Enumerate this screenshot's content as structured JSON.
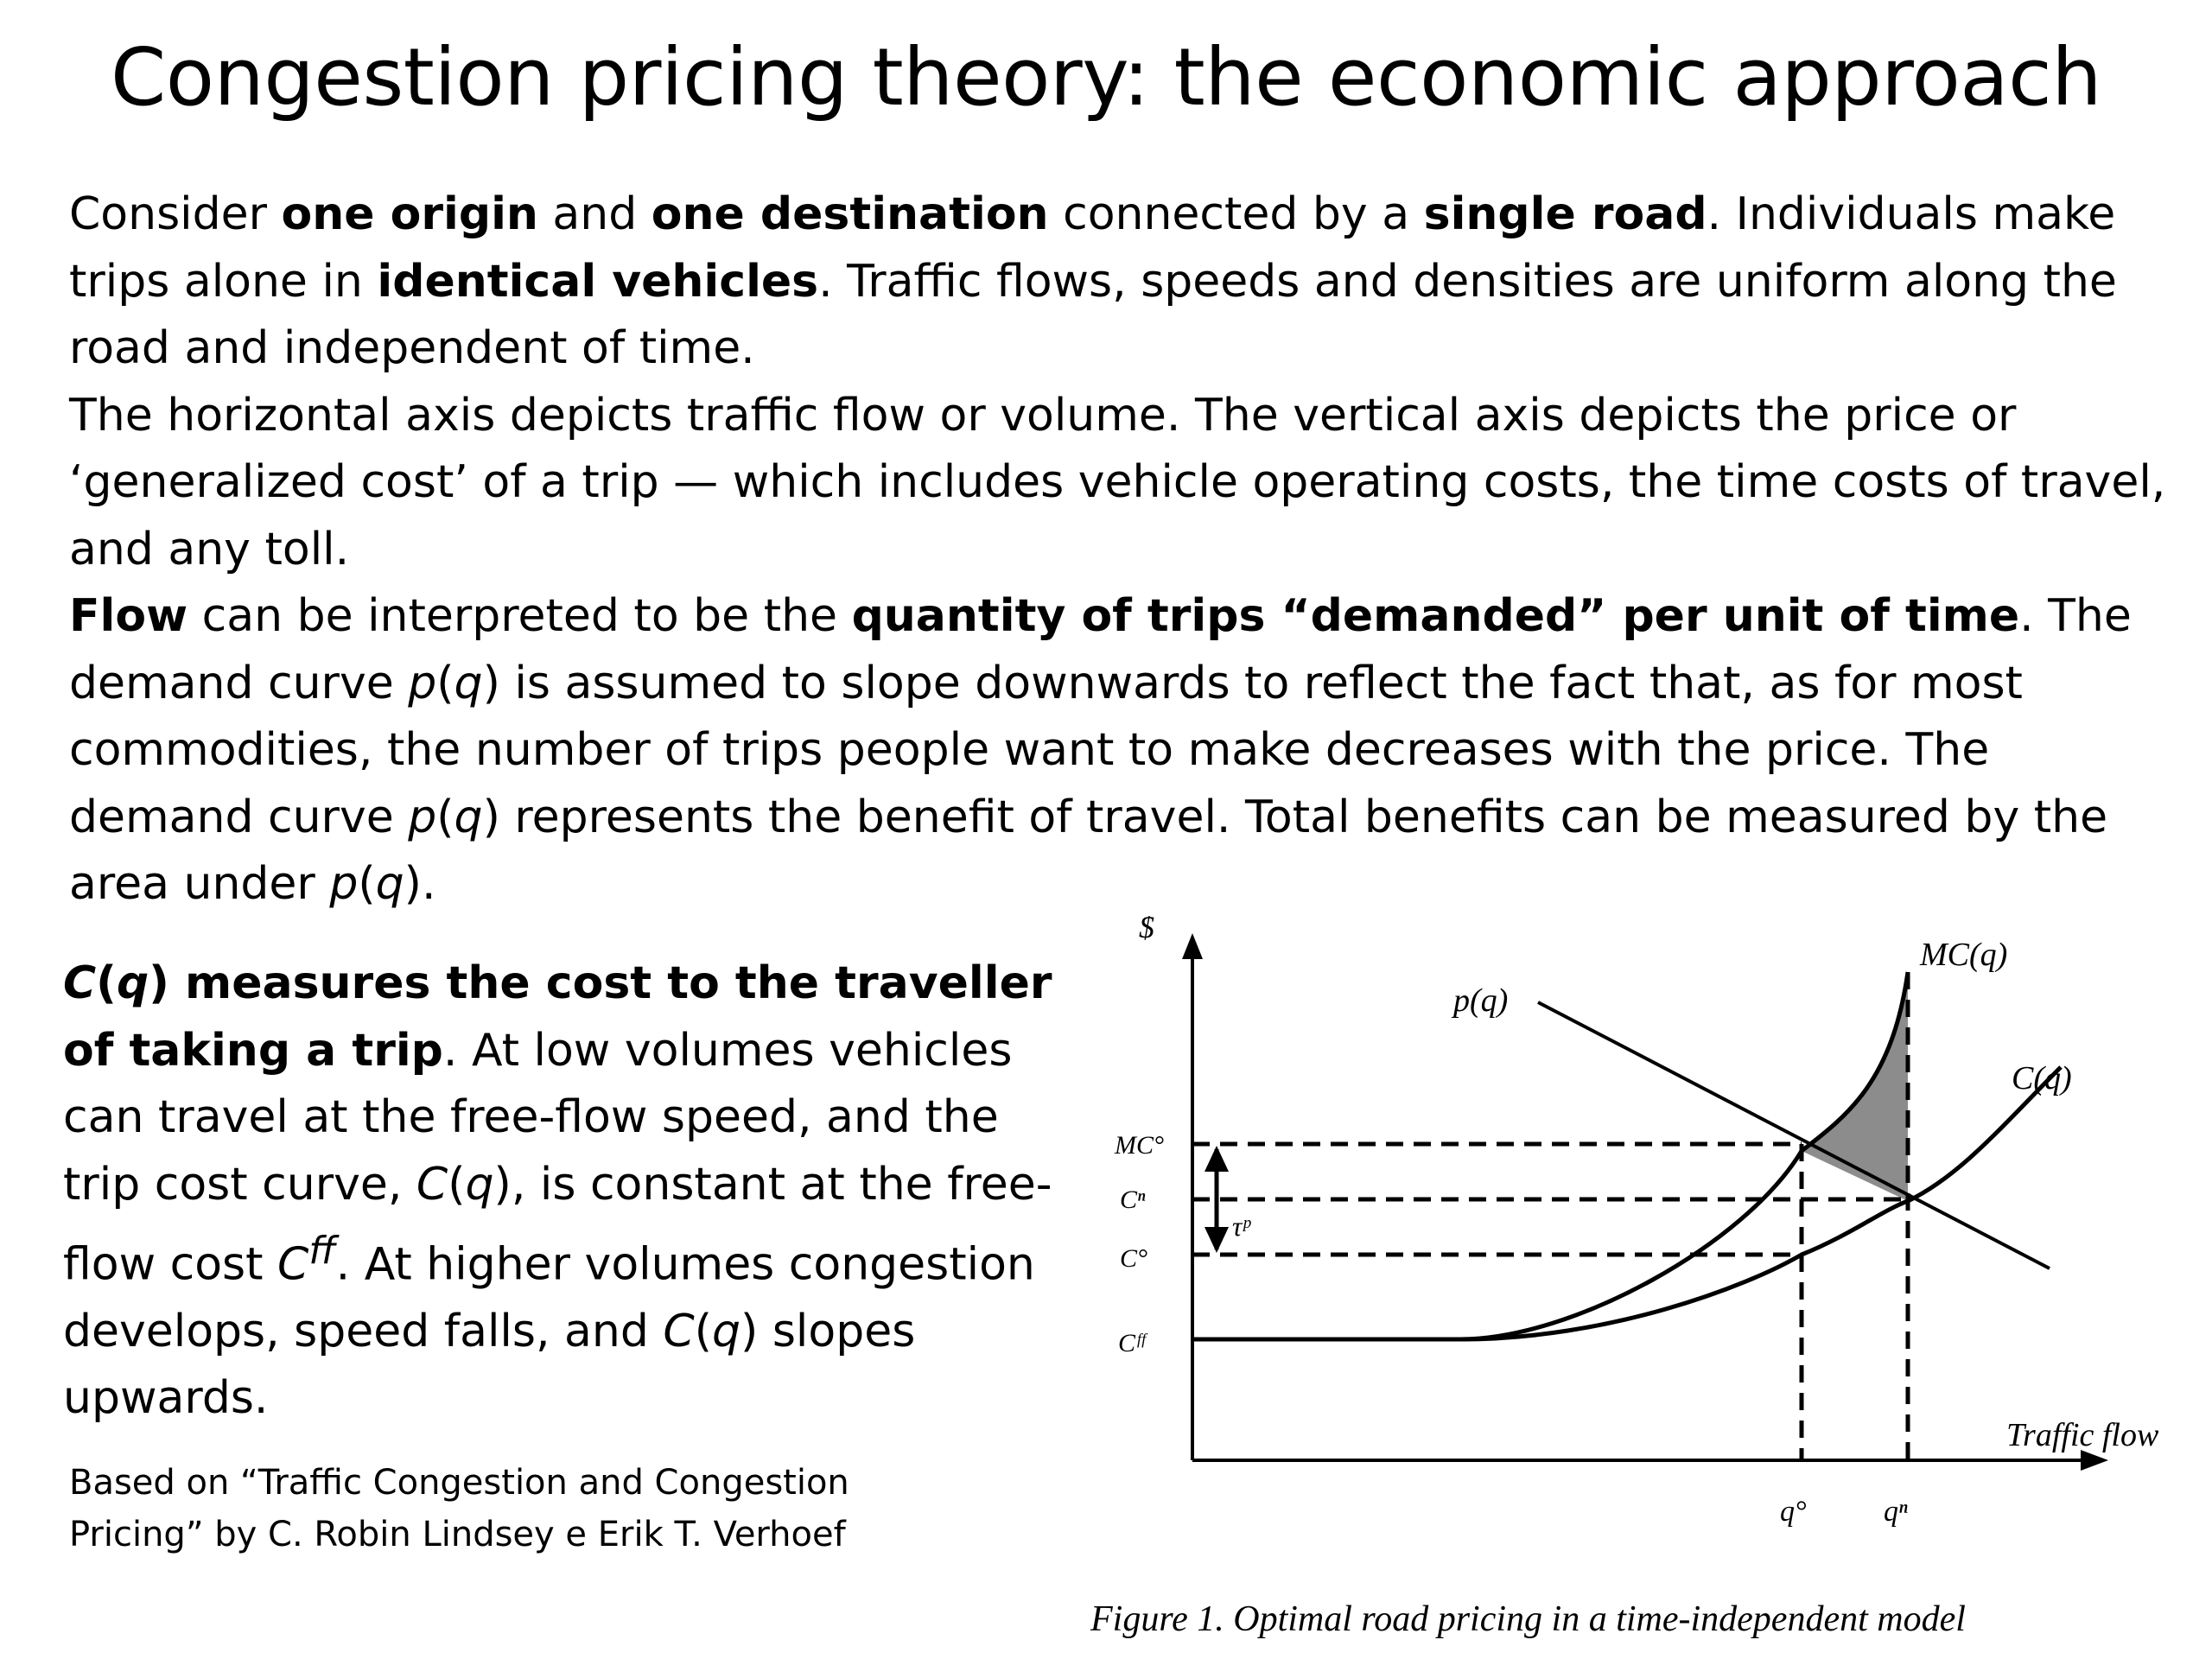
{
  "slide": {
    "title": "Congestion pricing theory: the economic approach"
  },
  "paragraph1": {
    "t1": "Consider ",
    "b1": "one origin",
    "t2": " and ",
    "b2": "one destination",
    "t3": " connected by a ",
    "b3": "single road",
    "t4": ". Individuals make trips alone in ",
    "b4": "identical vehicles",
    "t5": ". Traffic flows, speeds and densities are uniform along the road and independent of time."
  },
  "paragraph2": {
    "text": "The horizontal axis depicts traffic flow or volume. The vertical axis depicts the price or ‘generalized cost’ of a trip — which includes vehicle operating costs, the time costs of travel, and any toll."
  },
  "paragraph3": {
    "b1": "Flow",
    "t1": " can be interpreted to be the ",
    "b2": "quantity of trips “demanded” per unit of time",
    "t2": ". The demand curve ",
    "p": "p",
    "paren_open": "(",
    "q": "q",
    "paren_close": ")",
    "t3": " is assumed to slope downwards to reflect the fact that, as for most commodities, the number of trips people want to make decreases with the price. The demand curve ",
    "t4": " represents the benefit of travel. Total benefits can be measured by the area under ",
    "t5": "."
  },
  "paragraph4": {
    "C": "C",
    "paren_open": "(",
    "q": "q",
    "b1_rest": ") measures the cost to the traveller of taking a trip",
    "t1": ". At low volumes vehicles can travel at the free-flow speed, and the trip cost curve, ",
    "t2": ", is constant at the free-flow cost ",
    "sup_ff": "ff",
    "t3": ". At higher volumes congestion develops, speed falls, and ",
    "t4": " slopes upwards."
  },
  "citation": {
    "text": "Based on “Traffic Congestion and Congestion Pricing” by C. Robin Lindsey e Erik T. Verhoef"
  },
  "figure": {
    "caption": "Figure 1. Optimal road pricing in a time-independent model",
    "y_axis_label": "$",
    "x_axis_label": "Traffic flow",
    "curve_labels": {
      "mc": "MC(q)",
      "demand": "p(q)",
      "cost": "C(q)"
    },
    "y_ticks": {
      "mc_opt": "MC°",
      "c_n": "Cⁿ",
      "c_opt": "C°",
      "c_ff": "Cᶠᶠ"
    },
    "toll_label": "τᵖ",
    "x_ticks": {
      "q_opt": "q°",
      "q_n": "qⁿ"
    },
    "shading_color": "#8c8c8c"
  }
}
